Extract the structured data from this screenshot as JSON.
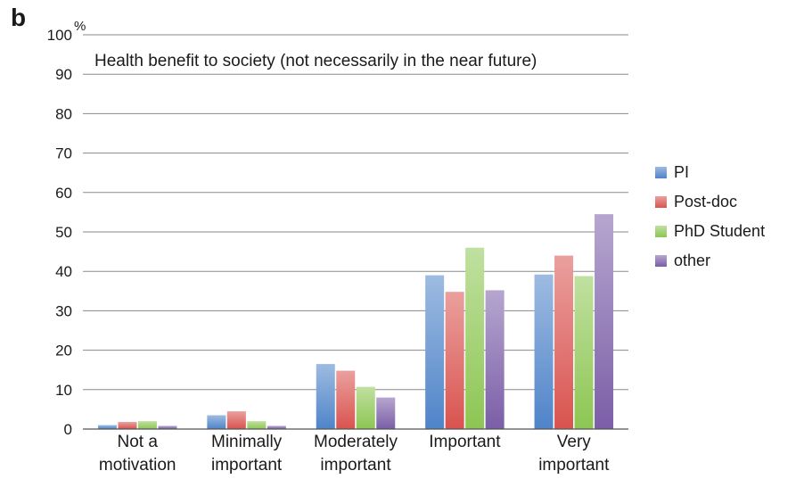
{
  "panel_label": "b",
  "chart_data": {
    "type": "bar",
    "title": "Health benefit to society (not necessarily in the near future)",
    "ylabel": "%",
    "xlabel": "",
    "ylim": [
      0,
      100
    ],
    "yticks": [
      0,
      10,
      20,
      30,
      40,
      50,
      60,
      70,
      80,
      90,
      100
    ],
    "grid": true,
    "legend_position": "right",
    "categories": [
      [
        "Not a",
        "motivation"
      ],
      [
        "Minimally",
        "important"
      ],
      [
        "Moderately",
        "important"
      ],
      [
        "Important"
      ],
      [
        "Very",
        "important"
      ]
    ],
    "series": [
      {
        "name": "PI",
        "color": "#4f84c9",
        "values": [
          1.0,
          3.5,
          16.5,
          39,
          39.2
        ]
      },
      {
        "name": "Post-doc",
        "color": "#d9534f",
        "values": [
          1.8,
          4.5,
          14.8,
          34.8,
          44
        ]
      },
      {
        "name": "PhD Student",
        "color": "#8dc653",
        "values": [
          2.0,
          2.0,
          10.7,
          46,
          38.8
        ]
      },
      {
        "name": "other",
        "color": "#7b5ea7",
        "values": [
          0.8,
          0.8,
          8.0,
          35.2,
          54.5
        ]
      }
    ]
  }
}
